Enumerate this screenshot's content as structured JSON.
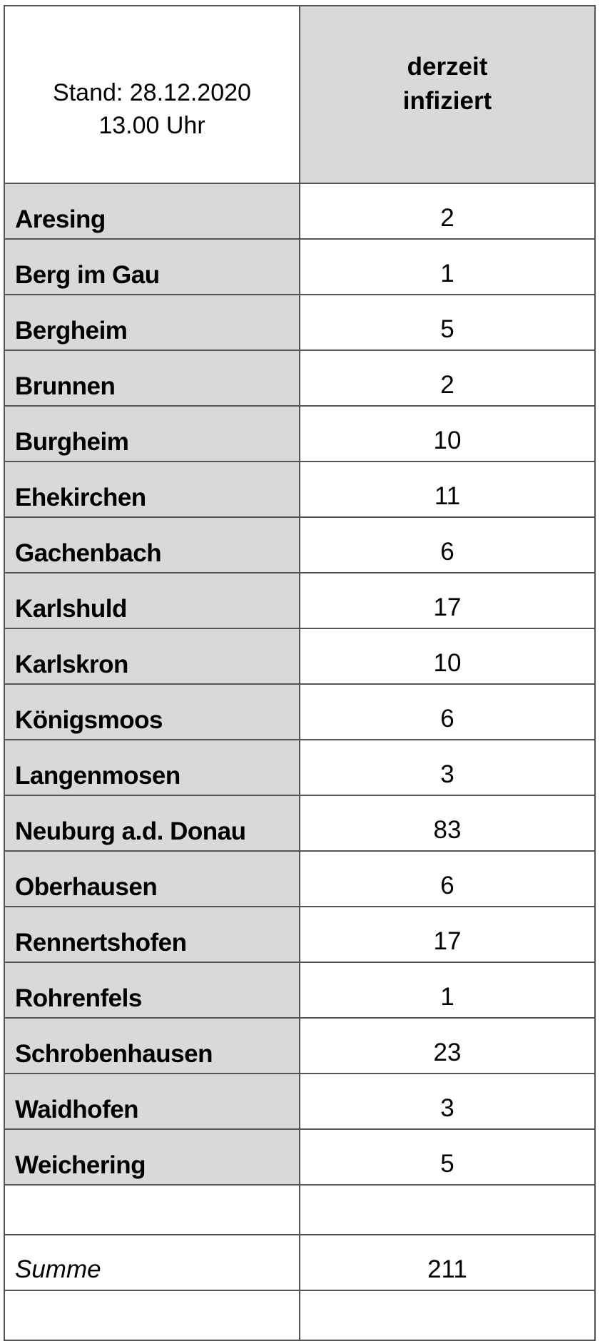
{
  "header": {
    "stand_line1": "Stand: 28.12.2020",
    "stand_line2": "13.00 Uhr",
    "column_line1": "derzeit",
    "column_line2": "infiziert"
  },
  "rows": [
    {
      "name": "Aresing",
      "value": "2"
    },
    {
      "name": "Berg im Gau",
      "value": "1"
    },
    {
      "name": "Bergheim",
      "value": "5"
    },
    {
      "name": "Brunnen",
      "value": "2"
    },
    {
      "name": "Burgheim",
      "value": "10"
    },
    {
      "name": "Ehekirchen",
      "value": "11"
    },
    {
      "name": "Gachenbach",
      "value": "6"
    },
    {
      "name": "Karlshuld",
      "value": "17"
    },
    {
      "name": "Karlskron",
      "value": "10"
    },
    {
      "name": "Königsmoos",
      "value": "6"
    },
    {
      "name": "Langenmosen",
      "value": "3"
    },
    {
      "name": "Neuburg a.d. Donau",
      "value": "83"
    },
    {
      "name": "Oberhausen",
      "value": "6"
    },
    {
      "name": "Rennertshofen",
      "value": "17"
    },
    {
      "name": "Rohrenfels",
      "value": "1"
    },
    {
      "name": "Schrobenhausen",
      "value": "23"
    },
    {
      "name": "Waidhofen",
      "value": "3"
    },
    {
      "name": "Weichering",
      "value": "5"
    }
  ],
  "total": {
    "label": "Summe",
    "value": "211"
  },
  "colors": {
    "shaded": "#d9d9d9",
    "border": "#555555"
  }
}
